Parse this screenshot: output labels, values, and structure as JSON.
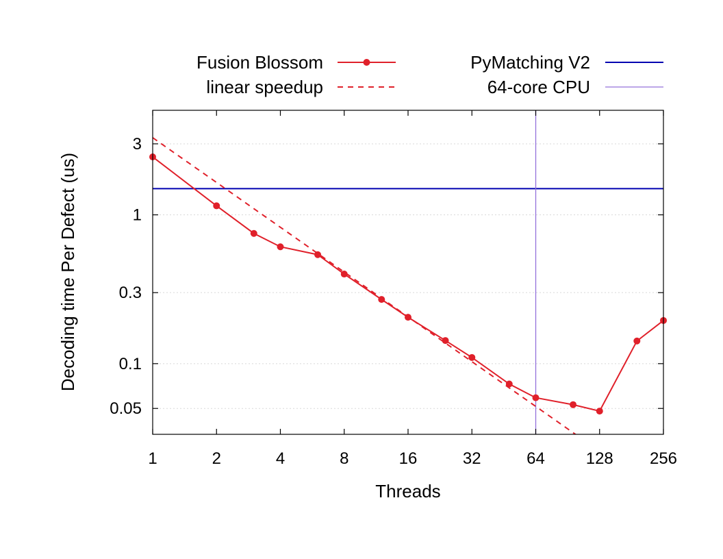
{
  "chart_data": {
    "type": "line",
    "xlabel": "Threads",
    "ylabel": "Decoding time Per Defect (us)",
    "xscale": "log2",
    "yscale": "log10",
    "xlim": [
      1,
      256
    ],
    "ylim": [
      0.0335,
      5.04
    ],
    "x_ticks": [
      {
        "value": 1,
        "label": "1"
      },
      {
        "value": 2,
        "label": "2"
      },
      {
        "value": 4,
        "label": "4"
      },
      {
        "value": 8,
        "label": "8"
      },
      {
        "value": 16,
        "label": "16"
      },
      {
        "value": 32,
        "label": "32"
      },
      {
        "value": 64,
        "label": "64"
      },
      {
        "value": 128,
        "label": "128"
      },
      {
        "value": 256,
        "label": "256"
      }
    ],
    "y_ticks": [
      {
        "value": 0.05,
        "label": "0.05"
      },
      {
        "value": 0.1,
        "label": "0.1"
      },
      {
        "value": 0.3,
        "label": "0.3"
      },
      {
        "value": 1,
        "label": "1"
      },
      {
        "value": 3,
        "label": "3"
      }
    ],
    "grid": true,
    "legend_position": "top",
    "series": [
      {
        "name": "Fusion Blossom",
        "style": "line-points",
        "color": "#e0202a",
        "x": [
          1,
          2,
          3,
          4,
          6,
          8,
          12,
          16,
          24,
          32,
          48,
          64,
          96,
          128,
          192,
          256
        ],
        "y": [
          2.45,
          1.15,
          0.75,
          0.61,
          0.54,
          0.4,
          0.27,
          0.205,
          0.143,
          0.11,
          0.073,
          0.059,
          0.053,
          0.048,
          0.142,
          0.195
        ]
      },
      {
        "name": "linear speedup",
        "style": "dashed",
        "color": "#e0202a",
        "x": [
          1,
          118
        ],
        "y": [
          3.3,
          0.02797
        ]
      },
      {
        "name": "PyMatching V2",
        "style": "hline",
        "color": "#0000b0",
        "y": 1.5
      },
      {
        "name": "64-core CPU",
        "style": "vline",
        "color": "#9370db",
        "x": 64
      }
    ]
  }
}
